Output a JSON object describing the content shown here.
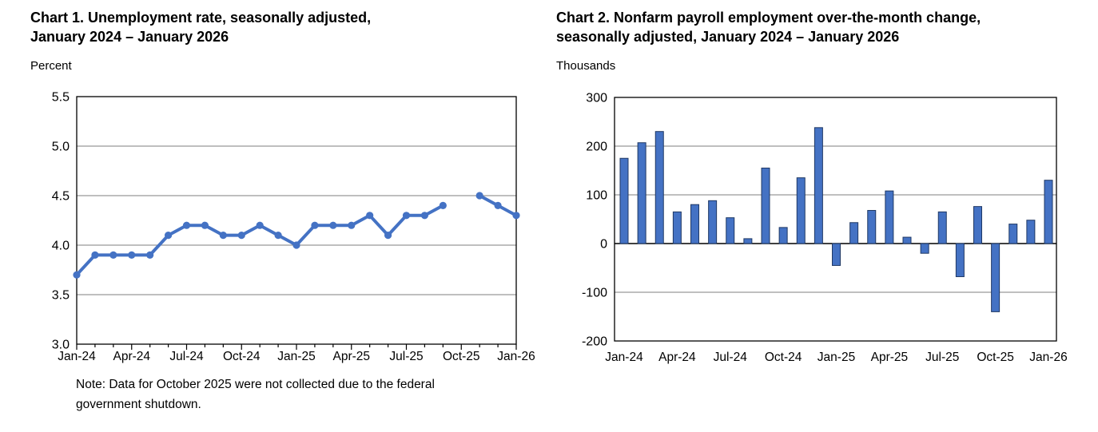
{
  "chart_data": [
    {
      "type": "line",
      "title": "Chart 1. Unemployment rate, seasonally adjusted, January 2024 – January 2026",
      "title_lines": [
        "Chart 1. Unemployment rate, seasonally adjusted,",
        "January 2024 – January 2026"
      ],
      "ylabel": "Percent",
      "xlabel": "",
      "categories": [
        "Jan-24",
        "Feb-24",
        "Mar-24",
        "Apr-24",
        "May-24",
        "Jun-24",
        "Jul-24",
        "Aug-24",
        "Sep-24",
        "Oct-24",
        "Nov-24",
        "Dec-24",
        "Jan-25",
        "Feb-25",
        "Mar-25",
        "Apr-25",
        "May-25",
        "Jun-25",
        "Jul-25",
        "Aug-25",
        "Sep-25",
        "Oct-25",
        "Nov-25",
        "Dec-25",
        "Jan-26"
      ],
      "values": [
        3.7,
        3.9,
        3.9,
        3.9,
        3.9,
        4.1,
        4.2,
        4.2,
        4.1,
        4.1,
        4.2,
        4.1,
        4.0,
        4.2,
        4.2,
        4.2,
        4.3,
        4.1,
        4.3,
        4.3,
        4.4,
        null,
        4.5,
        4.4,
        4.3
      ],
      "missing_months": [
        "Oct-25"
      ],
      "ylim": [
        3.0,
        5.5
      ],
      "yticks": [
        "5.5",
        "5.0",
        "4.5",
        "4.0",
        "3.5",
        "3.0"
      ],
      "xtick_labels": [
        "Jan-24",
        "Apr-24",
        "Jul-24",
        "Oct-24",
        "Jan-25",
        "Apr-25",
        "Jul-25",
        "Oct-25",
        "Jan-26"
      ],
      "grid": true,
      "legend_position": "none",
      "line_color": "#4472c4",
      "note_lines": [
        "Note: Data for October 2025 were not collected due to the federal",
        "government shutdown."
      ]
    },
    {
      "type": "bar",
      "title": "Chart 2. Nonfarm payroll employment over-the-month change, seasonally adjusted, January 2024 – January 2026",
      "title_lines": [
        "Chart 2. Nonfarm payroll employment over-the-month change,",
        "seasonally adjusted, January 2024 – January 2026"
      ],
      "ylabel": "Thousands",
      "xlabel": "",
      "categories": [
        "Jan-24",
        "Feb-24",
        "Mar-24",
        "Apr-24",
        "May-24",
        "Jun-24",
        "Jul-24",
        "Aug-24",
        "Sep-24",
        "Oct-24",
        "Nov-24",
        "Dec-24",
        "Jan-25",
        "Feb-25",
        "Mar-25",
        "Apr-25",
        "May-25",
        "Jun-25",
        "Jul-25",
        "Aug-25",
        "Sep-25",
        "Oct-25",
        "Nov-25",
        "Dec-25",
        "Jan-26"
      ],
      "values": [
        175,
        207,
        230,
        65,
        80,
        88,
        53,
        10,
        155,
        33,
        135,
        238,
        -45,
        43,
        68,
        108,
        13,
        -20,
        65,
        -68,
        76,
        -140,
        40,
        48,
        130
      ],
      "ylim": [
        -200,
        300
      ],
      "yticks": [
        "300",
        "200",
        "100",
        "0",
        "-100",
        "-200"
      ],
      "xtick_labels": [
        "Jan-24",
        "Apr-24",
        "Jul-24",
        "Oct-24",
        "Jan-25",
        "Apr-25",
        "Jul-25",
        "Oct-25",
        "Jan-26"
      ],
      "grid": true,
      "legend_position": "none",
      "bar_color": "#4472c4",
      "bar_border_color": "#1f3864"
    }
  ]
}
